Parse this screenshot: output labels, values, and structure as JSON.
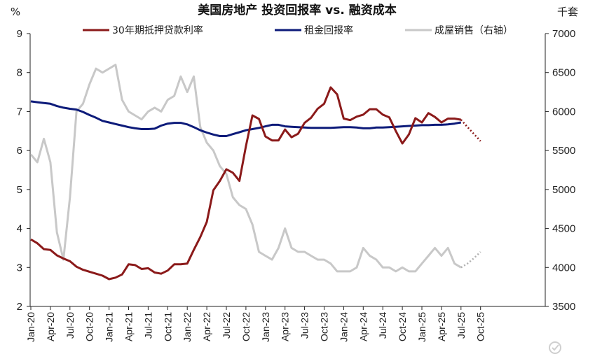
{
  "chart_data": {
    "type": "line",
    "title": "美国房地产 投资回报率 vs. 融资成本",
    "y_left_unit": "%",
    "y_right_unit": "千套",
    "ylim_left": [
      2,
      9
    ],
    "yticks_left": [
      "2",
      "3",
      "4",
      "5",
      "6",
      "7",
      "8",
      "9"
    ],
    "ylim_right": [
      3500,
      7000
    ],
    "yticks_right": [
      "3500",
      "4000",
      "4500",
      "5000",
      "5500",
      "6000",
      "6500",
      "7000"
    ],
    "x_tick_labels": [
      "Jan-20",
      "Apr-20",
      "Jul-20",
      "Oct-20",
      "Jan-21",
      "Apr-21",
      "Jul-21",
      "Oct-21",
      "Jan-22",
      "Apr-22",
      "Jul-22",
      "Oct-22",
      "Jan-23",
      "Apr-23",
      "Jul-23",
      "Oct-23",
      "Jan-24",
      "Apr-24",
      "Jul-24",
      "Oct-24",
      "Jan-25",
      "Apr-25",
      "Jul-25",
      "Oct-25"
    ],
    "legend_position": "top",
    "colors": {
      "mortgage": "#8b1a1a",
      "rent": "#0d1b7a",
      "sales": "#c8c8c8",
      "forecast_sales": "#b0b0b0"
    },
    "series": [
      {
        "name": "30年期抵押贷款利率",
        "axis": "left",
        "values": [
          3.72,
          3.62,
          3.47,
          3.45,
          3.31,
          3.23,
          3.16,
          3.02,
          2.94,
          2.89,
          2.84,
          2.79,
          2.7,
          2.74,
          2.82,
          3.08,
          3.06,
          2.96,
          2.98,
          2.87,
          2.84,
          2.92,
          3.08,
          3.08,
          3.1,
          3.45,
          3.78,
          4.17,
          4.98,
          5.22,
          5.52,
          5.43,
          5.22,
          6.11,
          6.9,
          6.81,
          6.36,
          6.26,
          6.26,
          6.54,
          6.34,
          6.43,
          6.71,
          6.84,
          7.07,
          7.2,
          7.62,
          7.44,
          6.82,
          6.78,
          6.87,
          6.92,
          7.06,
          7.06,
          6.92,
          6.85,
          6.5,
          6.18,
          6.41,
          6.83,
          6.72,
          6.96,
          6.86,
          6.72,
          6.82,
          6.82,
          6.79
        ],
        "forecast_values": [
          6.79,
          6.6,
          6.42,
          6.24
        ]
      },
      {
        "name": "租金回报率",
        "axis": "left",
        "values": [
          7.26,
          7.24,
          7.22,
          7.2,
          7.14,
          7.1,
          7.07,
          7.05,
          6.99,
          6.91,
          6.84,
          6.76,
          6.72,
          6.68,
          6.64,
          6.6,
          6.57,
          6.55,
          6.55,
          6.56,
          6.64,
          6.69,
          6.71,
          6.71,
          6.67,
          6.6,
          6.52,
          6.46,
          6.41,
          6.37,
          6.37,
          6.42,
          6.47,
          6.52,
          6.55,
          6.58,
          6.62,
          6.66,
          6.66,
          6.62,
          6.61,
          6.6,
          6.59,
          6.58,
          6.58,
          6.58,
          6.58,
          6.59,
          6.6,
          6.6,
          6.59,
          6.57,
          6.57,
          6.59,
          6.59,
          6.6,
          6.61,
          6.62,
          6.63,
          6.64,
          6.65,
          6.65,
          6.66,
          6.66,
          6.67,
          6.69,
          6.72
        ]
      },
      {
        "name": "成屋销售（右轴）",
        "axis": "right",
        "values": [
          5450,
          5350,
          5650,
          5350,
          4450,
          4100,
          4900,
          6000,
          6100,
          6350,
          6550,
          6500,
          6550,
          6600,
          6150,
          6000,
          5950,
          5900,
          6000,
          6050,
          6000,
          6150,
          6200,
          6450,
          6250,
          6450,
          5800,
          5600,
          5500,
          5300,
          5200,
          4900,
          4800,
          4750,
          4550,
          4200,
          4150,
          4100,
          4250,
          4500,
          4250,
          4200,
          4200,
          4150,
          4100,
          4100,
          4050,
          3950,
          3950,
          3950,
          4000,
          4250,
          4150,
          4100,
          4000,
          4000,
          3950,
          4000,
          3950,
          3950,
          4050,
          4150,
          4250,
          4150,
          4250,
          4050,
          4000
        ],
        "forecast_values": [
          4000,
          4050,
          4120,
          4200
        ]
      }
    ]
  }
}
